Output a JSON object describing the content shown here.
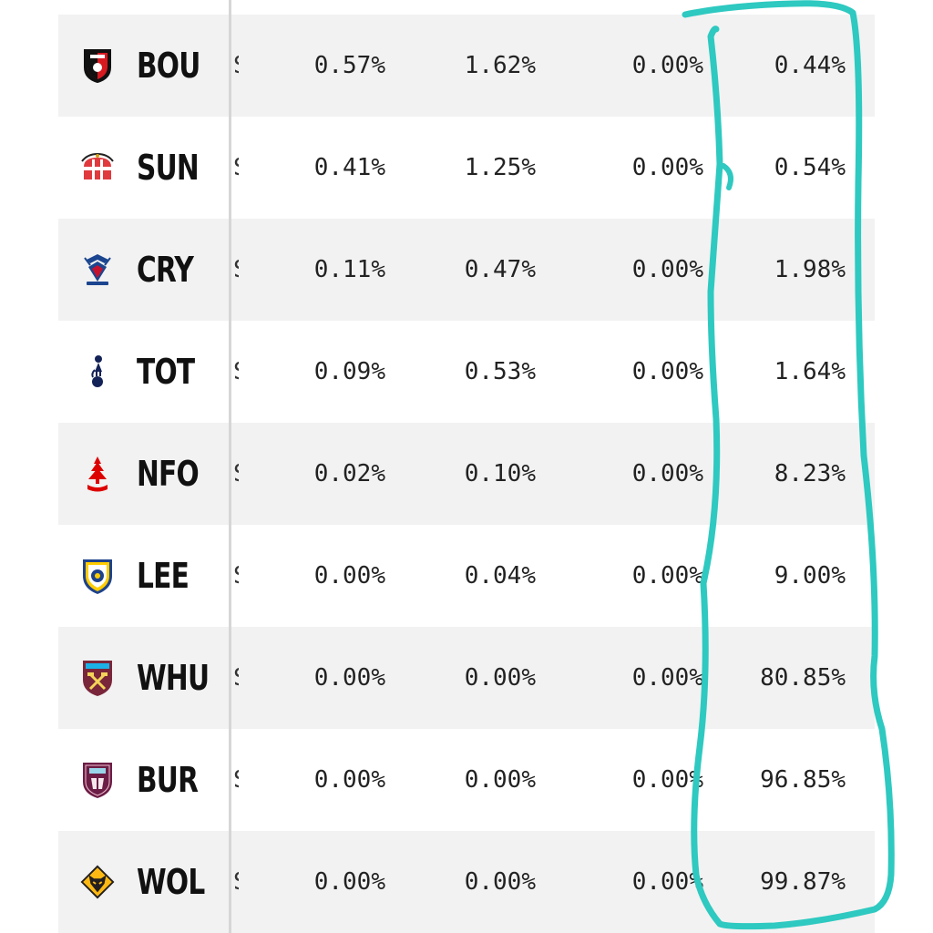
{
  "rows": [
    {
      "team": "BOU",
      "crest": "bournemouth-crest-icon",
      "cut": "S",
      "v1": "0.57%",
      "v2": "1.62%",
      "v3": "0.00%",
      "v4": "0.44%"
    },
    {
      "team": "SUN",
      "crest": "sunderland-crest-icon",
      "cut": "S",
      "v1": "0.41%",
      "v2": "1.25%",
      "v3": "0.00%",
      "v4": "0.54%"
    },
    {
      "team": "CRY",
      "crest": "crystal-palace-crest-icon",
      "cut": "S",
      "v1": "0.11%",
      "v2": "0.47%",
      "v3": "0.00%",
      "v4": "1.98%"
    },
    {
      "team": "TOT",
      "crest": "tottenham-crest-icon",
      "cut": "S",
      "v1": "0.09%",
      "v2": "0.53%",
      "v3": "0.00%",
      "v4": "1.64%"
    },
    {
      "team": "NFO",
      "crest": "nottingham-forest-crest-icon",
      "cut": "S",
      "v1": "0.02%",
      "v2": "0.10%",
      "v3": "0.00%",
      "v4": "8.23%"
    },
    {
      "team": "LEE",
      "crest": "leeds-crest-icon",
      "cut": "S",
      "v1": "0.00%",
      "v2": "0.04%",
      "v3": "0.00%",
      "v4": "9.00%"
    },
    {
      "team": "WHU",
      "crest": "west-ham-crest-icon",
      "cut": "S",
      "v1": "0.00%",
      "v2": "0.00%",
      "v3": "0.00%",
      "v4": "80.85%"
    },
    {
      "team": "BUR",
      "crest": "burnley-crest-icon",
      "cut": "S",
      "v1": "0.00%",
      "v2": "0.00%",
      "v3": "0.00%",
      "v4": "96.85%"
    },
    {
      "team": "WOL",
      "crest": "wolves-crest-icon",
      "cut": "S",
      "v1": "0.00%",
      "v2": "0.00%",
      "v3": "0.00%",
      "v4": "99.87%"
    }
  ],
  "colors": {
    "row_shaded": "#f2f2f2",
    "row_plain": "#ffffff",
    "highlight_stroke": "#2ec9c0"
  }
}
